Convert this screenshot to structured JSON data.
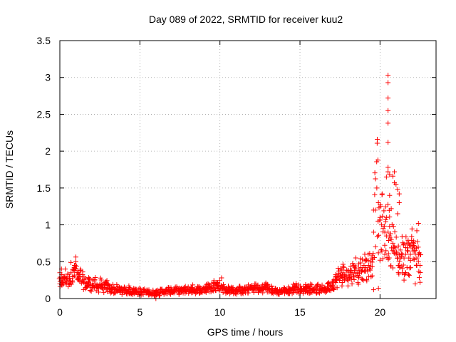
{
  "chart_data": {
    "type": "scatter",
    "title": "Day 089 of 2022, SRMTID for receiver kuu2",
    "xlabel": "GPS time / hours",
    "ylabel": "SRMTID / TECUs",
    "xlim": [
      0,
      23.5
    ],
    "ylim": [
      0,
      3.5
    ],
    "grid": true,
    "marker": "+",
    "xticks": [
      "0",
      "5",
      "10",
      "15",
      "20"
    ],
    "xtick_values": [
      0,
      5,
      10,
      15,
      20
    ],
    "yticks": [
      "0",
      "0.5",
      "1",
      "1.5",
      "2",
      "2.5",
      "3",
      "3.5"
    ],
    "ytick_values": [
      0,
      0.5,
      1,
      1.5,
      2,
      2.5,
      3,
      3.5
    ],
    "series": [
      {
        "name": "SRMTID",
        "color": "#ff0000",
        "x_start": 0,
        "x_step": 0.1,
        "values": [
          0.2,
          0.25,
          0.22,
          0.3,
          0.28,
          0.25,
          0.3,
          0.35,
          0.3,
          0.38,
          0.4,
          0.28,
          0.25,
          0.3,
          0.25,
          0.22,
          0.2,
          0.18,
          0.22,
          0.2,
          0.15,
          0.18,
          0.2,
          0.16,
          0.15,
          0.2,
          0.18,
          0.14,
          0.15,
          0.2,
          0.14,
          0.13,
          0.12,
          0.14,
          0.12,
          0.12,
          0.13,
          0.11,
          0.12,
          0.1,
          0.12,
          0.11,
          0.1,
          0.12,
          0.1,
          0.09,
          0.1,
          0.11,
          0.1,
          0.09,
          0.1,
          0.08,
          0.09,
          0.1,
          0.08,
          0.08,
          0.09,
          0.07,
          0.08,
          0.07,
          0.08,
          0.09,
          0.08,
          0.09,
          0.1,
          0.1,
          0.09,
          0.1,
          0.11,
          0.1,
          0.11,
          0.1,
          0.12,
          0.11,
          0.1,
          0.11,
          0.1,
          0.11,
          0.12,
          0.1,
          0.12,
          0.11,
          0.12,
          0.13,
          0.12,
          0.11,
          0.12,
          0.13,
          0.11,
          0.12,
          0.13,
          0.12,
          0.14,
          0.15,
          0.14,
          0.16,
          0.18,
          0.2,
          0.18,
          0.17,
          0.18,
          0.16,
          0.14,
          0.13,
          0.12,
          0.12,
          0.11,
          0.12,
          0.11,
          0.1,
          0.11,
          0.1,
          0.12,
          0.11,
          0.1,
          0.12,
          0.11,
          0.12,
          0.13,
          0.14,
          0.13,
          0.14,
          0.15,
          0.14,
          0.13,
          0.12,
          0.13,
          0.14,
          0.15,
          0.16,
          0.14,
          0.13,
          0.12,
          0.11,
          0.1,
          0.11,
          0.1,
          0.09,
          0.1,
          0.09,
          0.11,
          0.12,
          0.1,
          0.11,
          0.1,
          0.12,
          0.14,
          0.16,
          0.15,
          0.13,
          0.12,
          0.11,
          0.12,
          0.13,
          0.15,
          0.14,
          0.13,
          0.14,
          0.12,
          0.13,
          0.12,
          0.14,
          0.12,
          0.11,
          0.13,
          0.15,
          0.13,
          0.14,
          0.16,
          0.18,
          0.2,
          0.22,
          0.24,
          0.26,
          0.3,
          0.33,
          0.3,
          0.35,
          0.32,
          0.3,
          0.28,
          0.3,
          0.33,
          0.35,
          0.38,
          0.4,
          0.35,
          0.38,
          0.42,
          0.4,
          0.45,
          0.42,
          0.4,
          0.45,
          0.5,
          0.55,
          0.9,
          1.2,
          1.5,
          1.3,
          1.1,
          1.0,
          0.95,
          0.9,
          0.85,
          0.9,
          0.85,
          0.8,
          0.75,
          0.7,
          0.6,
          0.55,
          0.5,
          0.55,
          0.6,
          0.55,
          0.6,
          0.65,
          0.55,
          0.6,
          0.7,
          0.75,
          0.65,
          0.55,
          0.5,
          0.45
        ],
        "extra_points": [
          [
            20.5,
            3.03
          ],
          [
            20.5,
            2.93
          ],
          [
            20.5,
            2.72
          ],
          [
            20.5,
            2.55
          ],
          [
            20.5,
            2.38
          ],
          [
            20.5,
            2.12
          ],
          [
            20.5,
            1.78
          ],
          [
            20.5,
            1.72
          ],
          [
            20.4,
            1.65
          ],
          [
            20.6,
            1.68
          ],
          [
            20.9,
            1.72
          ],
          [
            20.8,
            1.66
          ],
          [
            20.9,
            1.57
          ],
          [
            21.0,
            1.55
          ],
          [
            21.1,
            1.48
          ],
          [
            21.2,
            1.42
          ],
          [
            21.2,
            1.3
          ],
          [
            20.6,
            1.4
          ],
          [
            20.7,
            1.22
          ],
          [
            21.1,
            1.15
          ],
          [
            20.4,
            1.1
          ],
          [
            20.6,
            0.98
          ],
          [
            22.4,
            1.02
          ],
          [
            22.3,
            0.92
          ],
          [
            21.8,
            0.75
          ],
          [
            22.1,
            0.72
          ],
          [
            21.5,
            0.25
          ],
          [
            22.2,
            0.2
          ],
          [
            22.5,
            0.22
          ],
          [
            1.0,
            0.5
          ],
          [
            0.9,
            0.42
          ],
          [
            0.1,
            0.4
          ],
          [
            0.0,
            0.35
          ],
          [
            10.1,
            0.28
          ],
          [
            6.0,
            0.0
          ],
          [
            19.9,
            0.62
          ],
          [
            20.0,
            0.52
          ],
          [
            19.5,
            0.58
          ],
          [
            19.9,
            0.14
          ],
          [
            19.6,
            0.12
          ]
        ]
      }
    ]
  }
}
